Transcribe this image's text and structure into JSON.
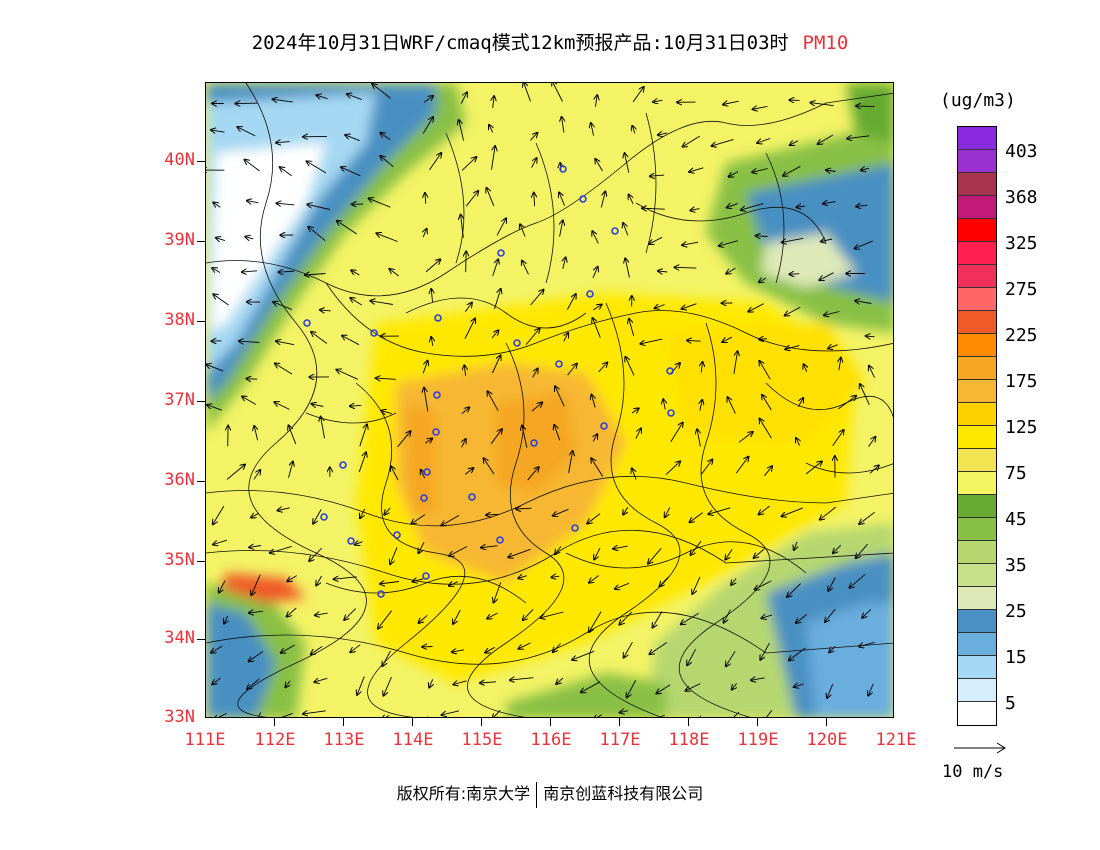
{
  "title": {
    "text": "2024年10月31日WRF/cmaq模式12km预报产品:10月31日03时",
    "variable": "PM10"
  },
  "unit_label": "(ug/m3)",
  "colorbar": {
    "labels": [
      "403",
      "368",
      "325",
      "275",
      "225",
      "175",
      "125",
      "75",
      "45",
      "35",
      "25",
      "15",
      "5"
    ],
    "colors": [
      "#8a2be2",
      "#9b30d0",
      "#a8344e",
      "#c21a78",
      "#ff0000",
      "#ff2050",
      "#f0305a",
      "#ff6666",
      "#f05a28",
      "#ff8c00",
      "#f5a623",
      "#f7b733",
      "#ffd000",
      "#ffe800",
      "#f2e451",
      "#f5f562",
      "#66aa33",
      "#88c045",
      "#b6d770",
      "#c8e08a",
      "#dfe9b8",
      "#4a90c2",
      "#6aaede",
      "#a5d8f2",
      "#d4effb",
      "#ffffff"
    ]
  },
  "lat_labels": [
    "40N",
    "39N",
    "38N",
    "37N",
    "36N",
    "35N",
    "34N",
    "33N"
  ],
  "lon_labels": [
    "111E",
    "112E",
    "113E",
    "114E",
    "115E",
    "116E",
    "117E",
    "118E",
    "119E",
    "120E",
    "121E"
  ],
  "wind_reference": "10 m/s",
  "copyright": {
    "left": "版权所有:南京大学",
    "right": "南京创蓝科技有限公司"
  },
  "colors": {
    "axis_label": "#e8333a",
    "station": "#2c3fe0"
  }
}
